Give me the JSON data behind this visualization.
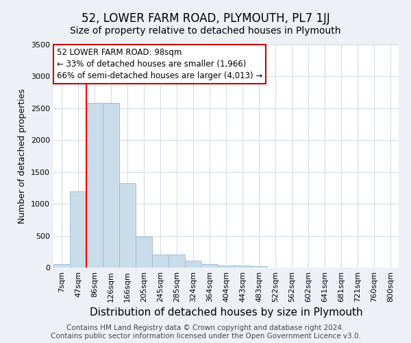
{
  "title": "52, LOWER FARM ROAD, PLYMOUTH, PL7 1JJ",
  "subtitle": "Size of property relative to detached houses in Plymouth",
  "xlabel": "Distribution of detached houses by size in Plymouth",
  "ylabel": "Number of detached properties",
  "categories": [
    "7sqm",
    "47sqm",
    "86sqm",
    "126sqm",
    "166sqm",
    "205sqm",
    "245sqm",
    "285sqm",
    "324sqm",
    "364sqm",
    "404sqm",
    "443sqm",
    "483sqm",
    "522sqm",
    "562sqm",
    "602sqm",
    "641sqm",
    "681sqm",
    "721sqm",
    "760sqm",
    "800sqm"
  ],
  "values": [
    50,
    1200,
    2580,
    2580,
    1330,
    490,
    200,
    200,
    110,
    50,
    30,
    30,
    20,
    5,
    5,
    5,
    5,
    5,
    5,
    5,
    5
  ],
  "bar_color": "#c9dcea",
  "bar_edge_color": "#9ab8cf",
  "red_line_x": 1.5,
  "annotation_text": "52 LOWER FARM ROAD: 98sqm\n← 33% of detached houses are smaller (1,966)\n66% of semi-detached houses are larger (4,013) →",
  "annotation_box_facecolor": "white",
  "annotation_box_edgecolor": "#cc0000",
  "ylim": [
    0,
    3500
  ],
  "yticks": [
    0,
    500,
    1000,
    1500,
    2000,
    2500,
    3000,
    3500
  ],
  "background_color": "#edf1f5",
  "plot_bg_color": "#ffffff",
  "grid_color": "#c8d4e0",
  "title_fontsize": 12,
  "subtitle_fontsize": 10,
  "xlabel_fontsize": 11,
  "ylabel_fontsize": 9,
  "tick_fontsize": 8,
  "annotation_fontsize": 8.5,
  "footer_fontsize": 7.5
}
